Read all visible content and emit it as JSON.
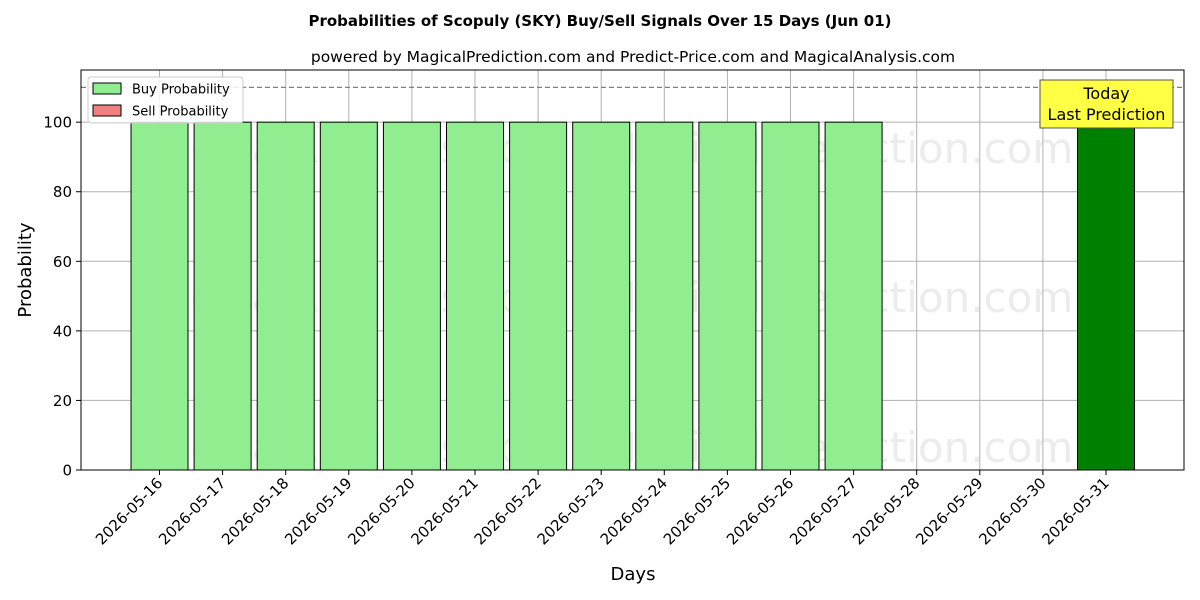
{
  "chart_data": {
    "type": "bar",
    "title": "Probabilities of Scopuly (SKY) Buy/Sell Signals Over 15 Days (Jun 01)",
    "subtitle": "powered by MagicalPrediction.com and Predict-Price.com and MagicalAnalysis.com",
    "xlabel": "Days",
    "ylabel": "Probability",
    "ylim": [
      0,
      115
    ],
    "yticks": [
      0,
      20,
      40,
      60,
      80,
      100
    ],
    "grid": true,
    "legend_position": "top-left",
    "categories": [
      "2026-05-16",
      "2026-05-17",
      "2026-05-18",
      "2026-05-19",
      "2026-05-20",
      "2026-05-21",
      "2026-05-22",
      "2026-05-23",
      "2026-05-24",
      "2026-05-25",
      "2026-05-26",
      "2026-05-27",
      "2026-05-28",
      "2026-05-29",
      "2026-05-30",
      "2026-05-31"
    ],
    "series": [
      {
        "name": "Buy Probability",
        "color": "#90ee90",
        "values": [
          100,
          100,
          100,
          100,
          100,
          100,
          100,
          100,
          100,
          100,
          100,
          100,
          null,
          null,
          null,
          null
        ]
      },
      {
        "name": "Sell Probability",
        "color": "#f08080",
        "values": [
          0,
          0,
          0,
          0,
          0,
          0,
          0,
          0,
          0,
          0,
          0,
          0,
          null,
          null,
          null,
          null
        ]
      }
    ],
    "highlight": {
      "category": "2026-05-31",
      "value": 100,
      "color": "#008000"
    },
    "reference_line": {
      "y": 110,
      "style": "dashed",
      "color": "#808080"
    },
    "annotation": {
      "lines": [
        "Today",
        "Last Prediction"
      ],
      "background": "#ffff44"
    },
    "watermarks": [
      "MagicalAnalysis.com",
      "MagicalPrediction.com"
    ]
  }
}
